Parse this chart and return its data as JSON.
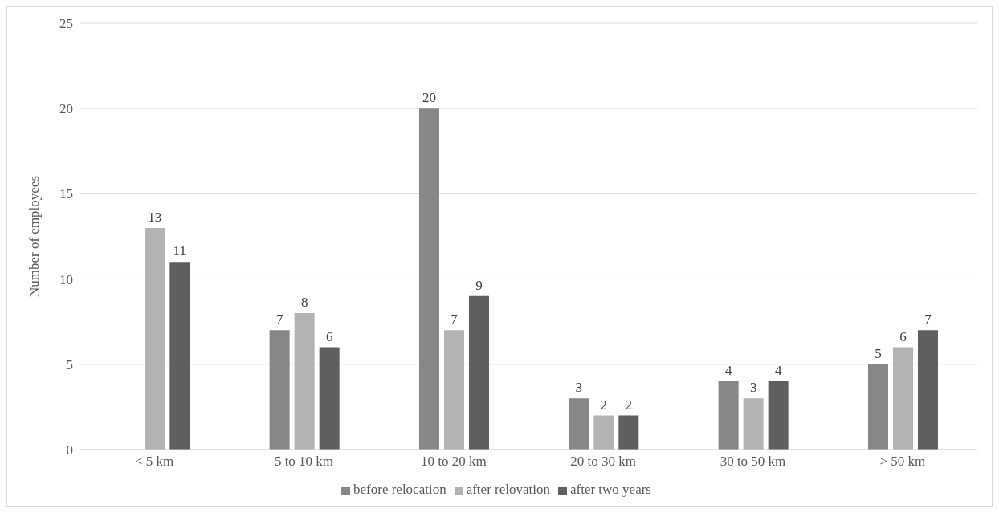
{
  "chart_data": {
    "type": "bar",
    "ylabel": "Number of employees",
    "categories": [
      "< 5 km",
      "5 to 10 km",
      "10 to 20 km",
      "20 to 30 km",
      "30 to 50 km",
      "> 50 km"
    ],
    "series": [
      {
        "name": "before relocation",
        "color": "#878787",
        "values": [
          null,
          7,
          20,
          3,
          4,
          5
        ]
      },
      {
        "name": "after relovation",
        "color": "#b3b3b3",
        "values": [
          13,
          8,
          7,
          2,
          3,
          6
        ]
      },
      {
        "name": "after two years",
        "color": "#5f5f5f",
        "values": [
          11,
          6,
          9,
          2,
          4,
          7
        ]
      }
    ],
    "ylim": [
      0,
      25
    ],
    "yticks": [
      0,
      5,
      10,
      15,
      20,
      25
    ],
    "grid": "y",
    "legend": "bottom",
    "data_labels": true
  }
}
